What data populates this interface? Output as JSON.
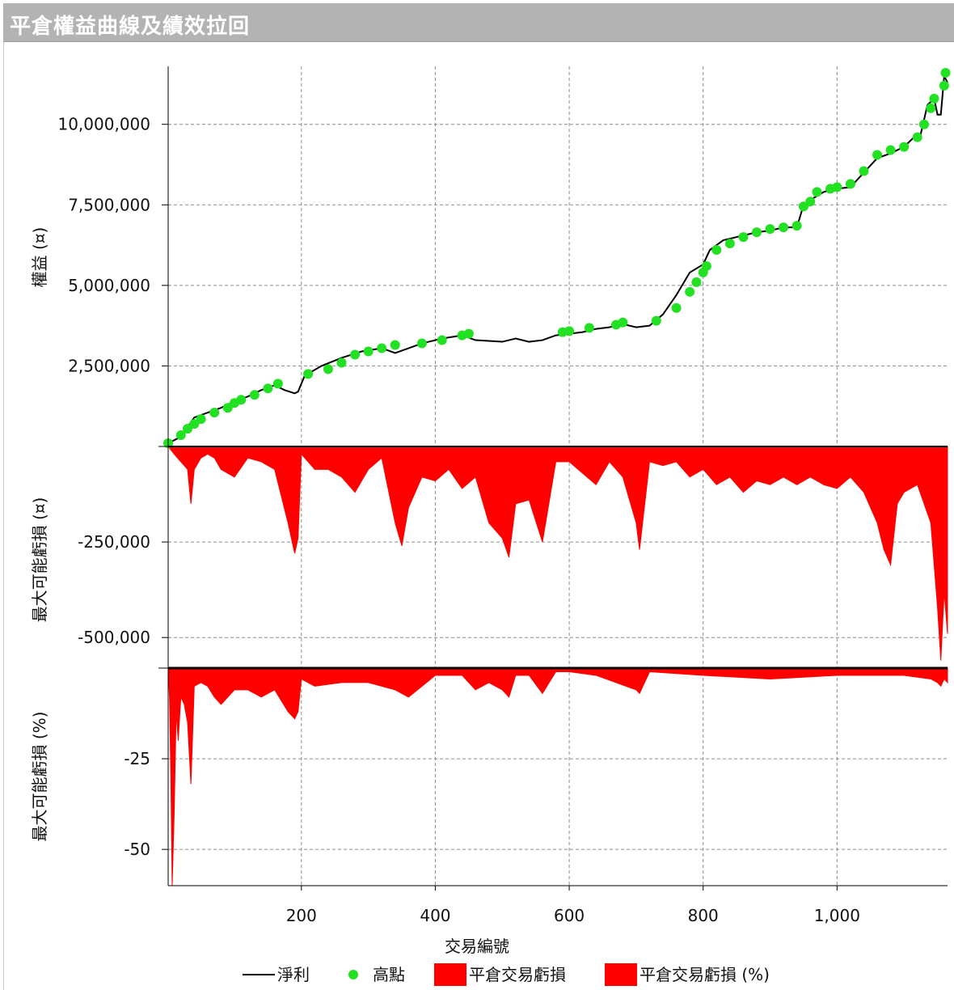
{
  "window": {
    "title": "平倉權益曲線及績效拉回"
  },
  "legend": {
    "net_profit": "淨利",
    "high_point": "高點",
    "dd_abs": "平倉交易虧損",
    "dd_pct": "平倉交易虧損 (%)"
  },
  "colors": {
    "line": "#000000",
    "high": "#22e022",
    "drawdown": "#ff0000",
    "title_bar": "#b3b3b3"
  },
  "chart_data": [
    {
      "type": "line",
      "panel": "equity",
      "ylabel": "權益 (¤)",
      "xlabel": "交易編號",
      "xlim": [
        1,
        1165
      ],
      "ylim": [
        0,
        11800000
      ],
      "x_ticks": [
        200,
        400,
        600,
        800,
        1000
      ],
      "x_tick_labels": [
        "200",
        "400",
        "600",
        "800",
        "1,000"
      ],
      "y_ticks": [
        2500000,
        5000000,
        7500000,
        10000000
      ],
      "y_tick_labels": [
        "2,500,000",
        "5,000,000",
        "7,500,000",
        "10,000,000"
      ],
      "grid": true,
      "series": [
        {
          "name": "淨利",
          "x": [
            1,
            20,
            40,
            60,
            80,
            100,
            120,
            140,
            160,
            175,
            190,
            195,
            205,
            230,
            260,
            290,
            320,
            340,
            360,
            380,
            410,
            440,
            460,
            500,
            520,
            540,
            560,
            580,
            600,
            620,
            640,
            660,
            680,
            700,
            720,
            740,
            760,
            780,
            800,
            810,
            830,
            860,
            880,
            900,
            920,
            940,
            950,
            960,
            980,
            1000,
            1020,
            1040,
            1060,
            1080,
            1100,
            1115,
            1125,
            1135,
            1145,
            1150,
            1155,
            1160,
            1165
          ],
          "values": [
            100000,
            300000,
            900000,
            1050000,
            1200000,
            1400000,
            1550000,
            1750000,
            1900000,
            1750000,
            1650000,
            1700000,
            2200000,
            2500000,
            2750000,
            2950000,
            3050000,
            2900000,
            3050000,
            3200000,
            3350000,
            3450000,
            3300000,
            3250000,
            3350000,
            3250000,
            3300000,
            3450000,
            3500000,
            3550000,
            3650000,
            3700000,
            3800000,
            3700000,
            3750000,
            4100000,
            4700000,
            5400000,
            5650000,
            6100000,
            6400000,
            6550000,
            6650000,
            6700000,
            6800000,
            6800000,
            7500000,
            7650000,
            7900000,
            8000000,
            8050000,
            8500000,
            8950000,
            9100000,
            9300000,
            9600000,
            9700000,
            10600000,
            10800000,
            10300000,
            10300000,
            11500000,
            11300000
          ]
        },
        {
          "name": "高點",
          "x": [
            1,
            20,
            30,
            40,
            50,
            70,
            90,
            100,
            110,
            130,
            150,
            165,
            210,
            240,
            260,
            280,
            300,
            320,
            340,
            380,
            410,
            440,
            450,
            590,
            600,
            630,
            670,
            680,
            730,
            760,
            780,
            790,
            800,
            805,
            820,
            840,
            860,
            880,
            900,
            920,
            940,
            950,
            960,
            970,
            990,
            1000,
            1020,
            1040,
            1060,
            1080,
            1100,
            1120,
            1130,
            1140,
            1145,
            1160,
            1162
          ],
          "values": [
            100000,
            350000,
            550000,
            700000,
            850000,
            1050000,
            1200000,
            1350000,
            1450000,
            1600000,
            1800000,
            1950000,
            2250000,
            2400000,
            2600000,
            2850000,
            2950000,
            3050000,
            3150000,
            3200000,
            3300000,
            3450000,
            3500000,
            3550000,
            3580000,
            3680000,
            3780000,
            3850000,
            3900000,
            4300000,
            4800000,
            5100000,
            5400000,
            5600000,
            6100000,
            6300000,
            6500000,
            6650000,
            6750000,
            6800000,
            6850000,
            7450000,
            7600000,
            7900000,
            8000000,
            8050000,
            8150000,
            8550000,
            9050000,
            9200000,
            9300000,
            9600000,
            10000000,
            10500000,
            10800000,
            11200000,
            11600000
          ]
        }
      ]
    },
    {
      "type": "area",
      "panel": "drawdown_abs",
      "ylabel": "最大可能虧損 (¤)",
      "xlim": [
        1,
        1165
      ],
      "ylim": [
        -580000,
        0
      ],
      "y_ticks": [
        -250000,
        -500000
      ],
      "y_tick_labels": [
        "-250,000",
        "-500,000"
      ],
      "series": [
        {
          "name": "平倉交易虧損",
          "x": [
            1,
            10,
            20,
            30,
            35,
            40,
            50,
            60,
            70,
            80,
            100,
            120,
            140,
            160,
            180,
            190,
            195,
            200,
            220,
            240,
            260,
            280,
            300,
            320,
            340,
            350,
            360,
            380,
            400,
            420,
            440,
            460,
            480,
            500,
            510,
            520,
            540,
            560,
            580,
            600,
            620,
            640,
            660,
            680,
            700,
            705,
            720,
            740,
            760,
            780,
            800,
            820,
            840,
            860,
            880,
            900,
            920,
            940,
            960,
            980,
            1000,
            1020,
            1040,
            1060,
            1070,
            1080,
            1090,
            1100,
            1120,
            1140,
            1150,
            1155,
            1160,
            1165
          ],
          "values": [
            0,
            -20000,
            -40000,
            -60000,
            -150000,
            -60000,
            -30000,
            -20000,
            -30000,
            -60000,
            -80000,
            -30000,
            -40000,
            -60000,
            -200000,
            -280000,
            -240000,
            -20000,
            -60000,
            -60000,
            -80000,
            -120000,
            -60000,
            -30000,
            -200000,
            -260000,
            -160000,
            -80000,
            -90000,
            -60000,
            -110000,
            -80000,
            -200000,
            -240000,
            -290000,
            -150000,
            -140000,
            -250000,
            -40000,
            -40000,
            -70000,
            -100000,
            -40000,
            -80000,
            -200000,
            -270000,
            -40000,
            -50000,
            -40000,
            -80000,
            -60000,
            -100000,
            -80000,
            -120000,
            -90000,
            -100000,
            -80000,
            -100000,
            -80000,
            -100000,
            -110000,
            -80000,
            -120000,
            -200000,
            -270000,
            -310000,
            -150000,
            -120000,
            -100000,
            -200000,
            -420000,
            -560000,
            -380000,
            -490000
          ]
        }
      ]
    },
    {
      "type": "area",
      "panel": "drawdown_pct",
      "ylabel": "最大可能虧損 (%)",
      "xlim": [
        1,
        1165
      ],
      "ylim": [
        -60,
        0
      ],
      "y_ticks": [
        -25,
        -50
      ],
      "y_tick_labels": [
        "-25",
        "-50"
      ],
      "series": [
        {
          "name": "平倉交易虧損 (%)",
          "x": [
            1,
            3,
            5,
            7,
            10,
            13,
            16,
            20,
            25,
            30,
            35,
            40,
            50,
            60,
            70,
            80,
            100,
            120,
            140,
            160,
            180,
            190,
            195,
            200,
            220,
            260,
            300,
            340,
            360,
            400,
            440,
            460,
            480,
            500,
            510,
            520,
            540,
            560,
            580,
            600,
            640,
            700,
            705,
            720,
            800,
            900,
            1000,
            1100,
            1140,
            1150,
            1155,
            1160,
            1165
          ],
          "values": [
            0,
            -8,
            -30,
            -60,
            -40,
            -12,
            -20,
            -8,
            -10,
            -15,
            -32,
            -5,
            -4,
            -5,
            -8,
            -10,
            -6,
            -6,
            -8,
            -6,
            -12,
            -14,
            -12,
            -3,
            -5,
            -4,
            -4,
            -6,
            -8,
            -2,
            -2,
            -6,
            -4,
            -6,
            -8,
            -2,
            -2,
            -7,
            -1,
            -1,
            -2,
            -6,
            -7,
            -1,
            -2,
            -3,
            -2,
            -2,
            -3,
            -4,
            -5,
            -3,
            -4
          ]
        }
      ]
    }
  ]
}
